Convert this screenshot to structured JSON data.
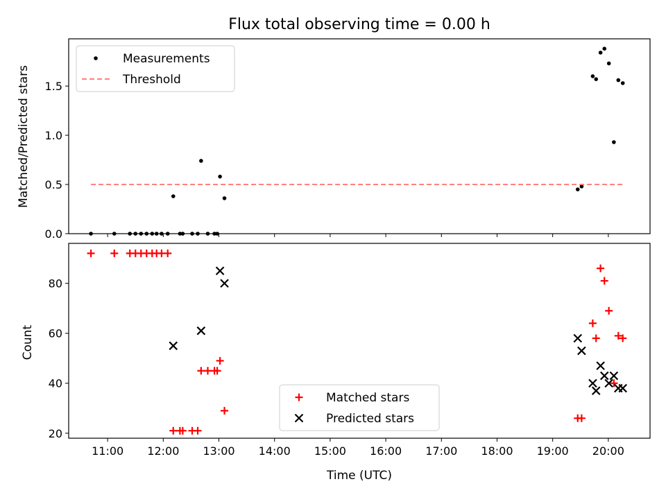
{
  "chart_data": [
    {
      "type": "scatter",
      "title": "Flux total observing time = 0.00 h",
      "ylabel": "Matched/Predicted stars",
      "xlabel": "",
      "xlim": [
        10.3,
        20.75
      ],
      "ylim": [
        0,
        1.98
      ],
      "yticks": [
        "0.0",
        "0.5",
        "1.0",
        "1.5"
      ],
      "xticks_shown": false,
      "legend": {
        "placement": "top-left"
      },
      "series": [
        {
          "name": "Measurements",
          "marker": "dot",
          "color": "#000000",
          "x": [
            10.7,
            11.12,
            11.4,
            11.5,
            11.6,
            11.7,
            11.8,
            11.88,
            11.97,
            12.08,
            12.18,
            12.3,
            12.35,
            12.52,
            12.62,
            12.68,
            12.8,
            12.92,
            12.97,
            13.02,
            13.1,
            19.45,
            19.52,
            19.72,
            19.78,
            19.86,
            19.93,
            20.01,
            20.1,
            20.18,
            20.26
          ],
          "y": [
            0.0,
            0.0,
            0.0,
            0.0,
            0.0,
            0.0,
            0.0,
            0.0,
            0.0,
            0.0,
            0.38,
            0.0,
            0.0,
            0.0,
            0.0,
            0.74,
            0.0,
            0.0,
            0.0,
            0.58,
            0.36,
            0.45,
            0.48,
            1.6,
            1.57,
            1.84,
            1.88,
            1.73,
            0.93,
            1.56,
            1.53
          ]
        },
        {
          "name": "Threshold",
          "line": "dashed",
          "color": "#ff7f7f",
          "x": [
            10.7,
            20.26
          ],
          "y": [
            0.5,
            0.5
          ]
        }
      ]
    },
    {
      "type": "scatter",
      "title": "",
      "ylabel": "Count",
      "xlabel": "Time (UTC)",
      "xlim": [
        10.3,
        20.75
      ],
      "ylim": [
        18,
        96
      ],
      "yticks": [
        "20",
        "40",
        "60",
        "80"
      ],
      "xticks": [
        "11:00",
        "12:00",
        "13:00",
        "14:00",
        "15:00",
        "16:00",
        "17:00",
        "18:00",
        "19:00",
        "20:00"
      ],
      "legend": {
        "placement": "bottom-center"
      },
      "series": [
        {
          "name": "Matched stars",
          "marker": "plus",
          "color": "#ff0000",
          "x": [
            10.7,
            11.12,
            11.4,
            11.5,
            11.6,
            11.7,
            11.8,
            11.88,
            11.97,
            12.08,
            12.18,
            12.3,
            12.35,
            12.52,
            12.62,
            12.68,
            12.8,
            12.92,
            12.97,
            13.02,
            13.1,
            19.45,
            19.52,
            19.72,
            19.78,
            19.86,
            19.93,
            20.01,
            20.1,
            20.18,
            20.26
          ],
          "y": [
            92,
            92,
            92,
            92,
            92,
            92,
            92,
            92,
            92,
            92,
            21,
            21,
            21,
            21,
            21,
            45,
            45,
            45,
            45,
            49,
            29,
            26,
            26,
            64,
            58,
            86,
            81,
            69,
            40,
            59,
            58
          ]
        },
        {
          "name": "Predicted stars",
          "marker": "x",
          "color": "#000000",
          "x": [
            12.18,
            12.68,
            13.02,
            13.1,
            19.45,
            19.52,
            19.72,
            19.78,
            19.86,
            19.93,
            20.01,
            20.1,
            20.18,
            20.26
          ],
          "y": [
            55,
            61,
            85,
            80,
            58,
            53,
            40,
            37,
            47,
            43,
            40,
            43,
            38,
            38
          ]
        }
      ]
    }
  ]
}
